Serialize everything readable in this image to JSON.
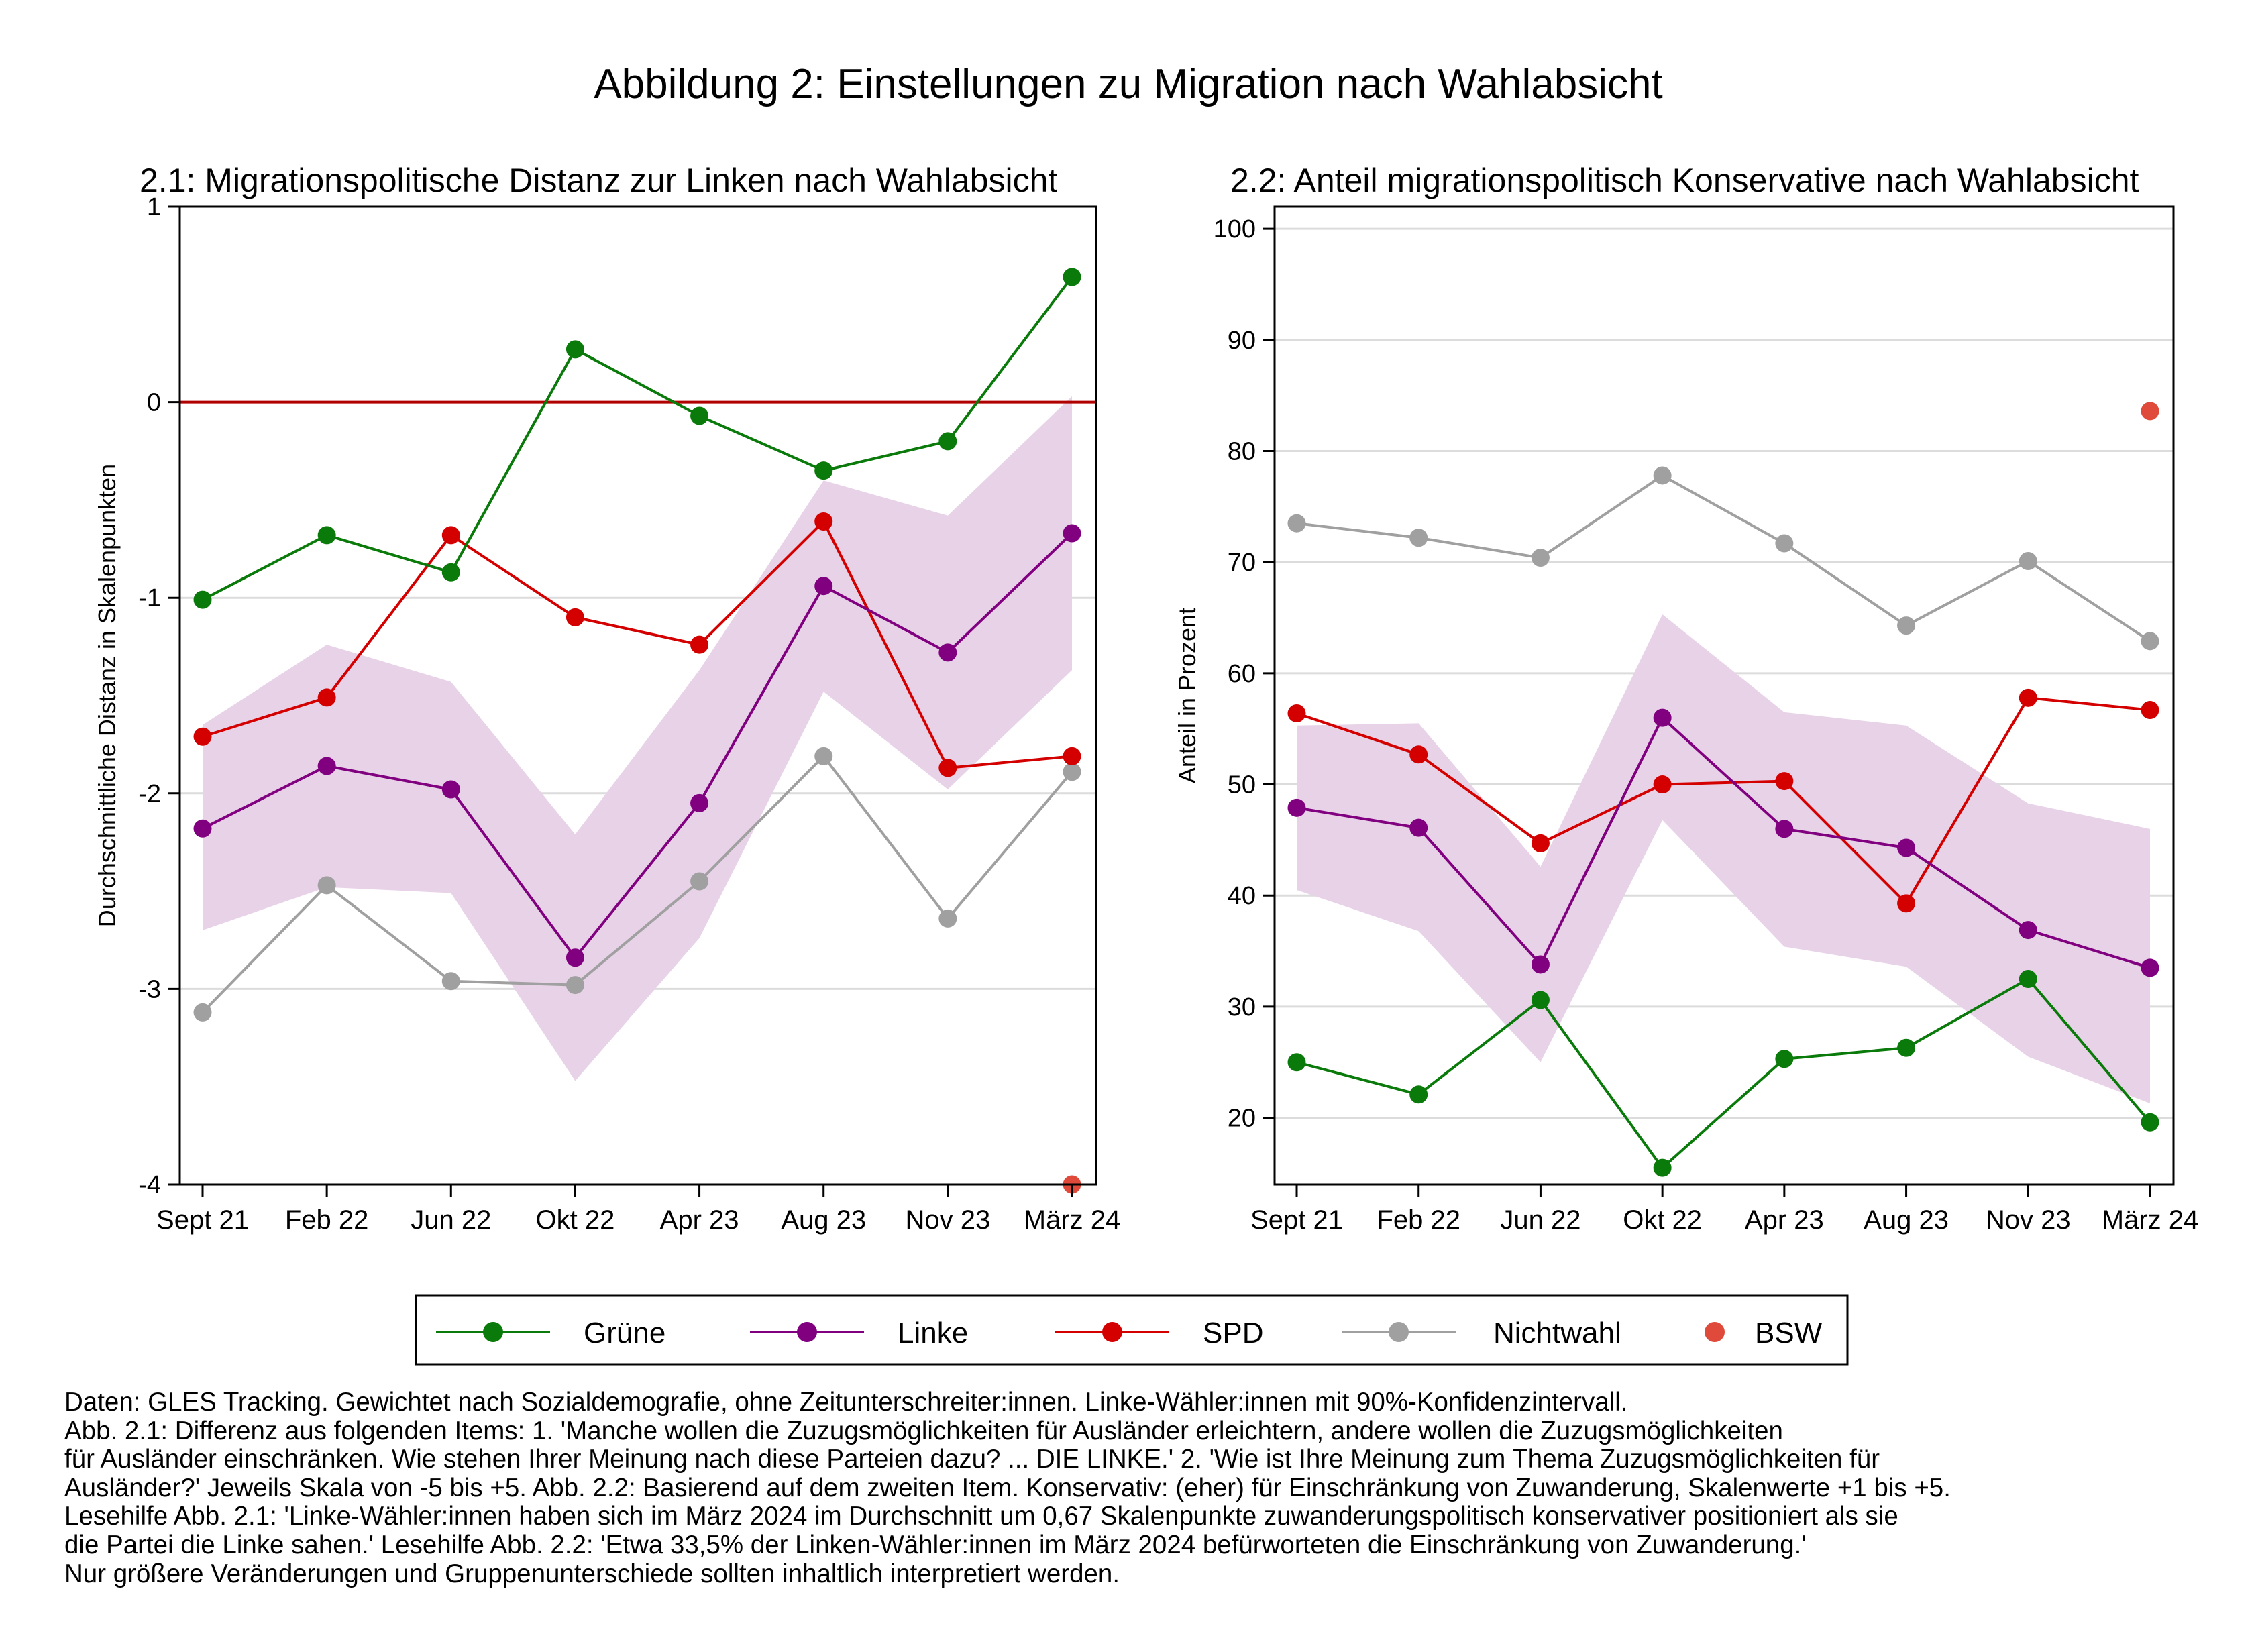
{
  "title": "Abbildung 2: Einstellungen zu Migration nach Wahlabsicht",
  "legend": {
    "items": [
      {
        "label": "Grüne",
        "color": "#0a7a0a",
        "marker": "line-dot"
      },
      {
        "label": "Linke",
        "color": "#800080",
        "marker": "line-dot"
      },
      {
        "label": "SPD",
        "color": "#d40000",
        "marker": "line-dot"
      },
      {
        "label": "Nichtwahl",
        "color": "#a0a0a0",
        "marker": "line-dot"
      },
      {
        "label": "BSW",
        "color": "#e04a3a",
        "marker": "dot"
      }
    ]
  },
  "notes": [
    "Daten: GLES Tracking. Gewichtet nach Sozialdemografie, ohne Zeitunterschreiter:innen. Linke-Wähler:innen mit 90%-Konfidenzintervall.",
    "Abb. 2.1: Differenz aus folgenden Items: 1. 'Manche wollen die Zuzugsmöglichkeiten für Ausländer erleichtern, andere wollen die Zuzugsmöglichkeiten",
    "für Ausländer einschränken. Wie stehen Ihrer Meinung nach diese Parteien dazu? ... DIE LINKE.' 2. 'Wie ist Ihre Meinung zum Thema Zuzugsmöglichkeiten für",
    "Ausländer?' Jeweils Skala von -5 bis +5. Abb. 2.2: Basierend auf dem zweiten Item. Konservativ: (eher) für Einschränkung von Zuwanderung, Skalenwerte +1 bis +5.",
    "Lesehilfe Abb. 2.1: 'Linke-Wähler:innen haben sich im März 2024 im Durchschnitt um 0,67 Skalenpunkte zuwanderungspolitisch konservativer positioniert als sie",
    "die Partei die Linke sahen.' Lesehilfe Abb. 2.2: 'Etwa 33,5% der Linken-Wähler:innen im März 2024 befürworteten die Einschränkung von Zuwanderung.'",
    "Nur größere Veränderungen und Gruppenunterschiede sollten inhaltlich interpretiert werden."
  ],
  "colors": {
    "gruene": "#0a7a0a",
    "linke": "#800080",
    "spd": "#d40000",
    "nichtwahl": "#a0a0a0",
    "bsw": "#e04a3a",
    "ci_band": "#e8d2e8",
    "zero_line": "#b00000",
    "grid": "#dcdcdc"
  },
  "chart_data": [
    {
      "type": "line",
      "title": "2.1: Migrationspolitische Distanz zur Linken nach Wahlabsicht",
      "xlabel": "",
      "ylabel": "Durchschnittliche Distanz in Skalenpunkten",
      "categories": [
        "Sept 21",
        "Feb 22",
        "Jun 22",
        "Okt 22",
        "Apr 23",
        "Aug 23",
        "Nov 23",
        "März 24"
      ],
      "ylim": [
        -4,
        1
      ],
      "yticks": [
        1,
        0,
        -1,
        -2,
        -3,
        -4
      ],
      "ytick_labels": [
        "1",
        "0",
        "-1",
        "-2",
        "-3",
        "-4"
      ],
      "reference_line": 0,
      "grid": true,
      "series": [
        {
          "name": "Grüne",
          "key": "gruene",
          "values": [
            -1.01,
            -0.68,
            -0.87,
            0.27,
            -0.07,
            -0.35,
            -0.2,
            0.64
          ]
        },
        {
          "name": "Linke",
          "key": "linke",
          "values": [
            -2.18,
            -1.86,
            -1.98,
            -2.84,
            -2.05,
            -0.94,
            -1.28,
            -0.67
          ],
          "ci_lower": [
            -2.7,
            -2.48,
            -2.51,
            -3.47,
            -2.74,
            -1.48,
            -1.98,
            -1.37
          ],
          "ci_upper": [
            -1.65,
            -1.24,
            -1.43,
            -2.21,
            -1.37,
            -0.4,
            -0.58,
            0.03
          ]
        },
        {
          "name": "SPD",
          "key": "spd",
          "values": [
            -1.71,
            -1.51,
            -0.68,
            -1.1,
            -1.24,
            -0.61,
            -1.87,
            -1.81
          ]
        },
        {
          "name": "Nichtwahl",
          "key": "nichtwahl",
          "values": [
            -3.12,
            -2.47,
            -2.96,
            -2.98,
            -2.45,
            -1.81,
            -2.64,
            -1.89
          ]
        },
        {
          "name": "BSW",
          "key": "bsw",
          "values": [
            null,
            null,
            null,
            null,
            null,
            null,
            null,
            -4.0
          ]
        }
      ]
    },
    {
      "type": "line",
      "title": "2.2: Anteil migrationspolitisch Konservative nach Wahlabsicht",
      "xlabel": "",
      "ylabel": "Anteil in Prozent",
      "categories": [
        "Sept 21",
        "Feb 22",
        "Jun 22",
        "Okt 22",
        "Apr 23",
        "Aug 23",
        "Nov 23",
        "März 24"
      ],
      "ylim": [
        14,
        102
      ],
      "yticks": [
        100,
        90,
        80,
        70,
        60,
        50,
        40,
        30,
        20
      ],
      "ytick_labels": [
        "100",
        "90",
        "80",
        "70",
        "60",
        "50",
        "40",
        "30",
        "20"
      ],
      "grid": true,
      "series": [
        {
          "name": "Grüne",
          "key": "gruene",
          "values": [
            25.0,
            22.1,
            30.6,
            15.5,
            25.3,
            26.3,
            32.5,
            19.6
          ]
        },
        {
          "name": "Linke",
          "key": "linke",
          "values": [
            47.9,
            46.1,
            33.8,
            56.0,
            46.0,
            44.3,
            36.9,
            33.5
          ],
          "ci_lower": [
            40.5,
            36.8,
            25.0,
            46.8,
            35.4,
            33.6,
            25.5,
            21.3
          ],
          "ci_upper": [
            55.3,
            55.5,
            42.6,
            65.3,
            56.5,
            55.3,
            48.3,
            46.0
          ]
        },
        {
          "name": "SPD",
          "key": "spd",
          "values": [
            56.4,
            52.7,
            44.7,
            50.0,
            50.3,
            39.3,
            57.8,
            56.7
          ]
        },
        {
          "name": "Nichtwahl",
          "key": "nichtwahl",
          "values": [
            73.5,
            72.2,
            70.4,
            77.8,
            71.7,
            64.3,
            70.1,
            62.9
          ]
        },
        {
          "name": "BSW",
          "key": "bsw",
          "values": [
            null,
            null,
            null,
            null,
            null,
            null,
            null,
            83.6
          ]
        }
      ]
    }
  ]
}
